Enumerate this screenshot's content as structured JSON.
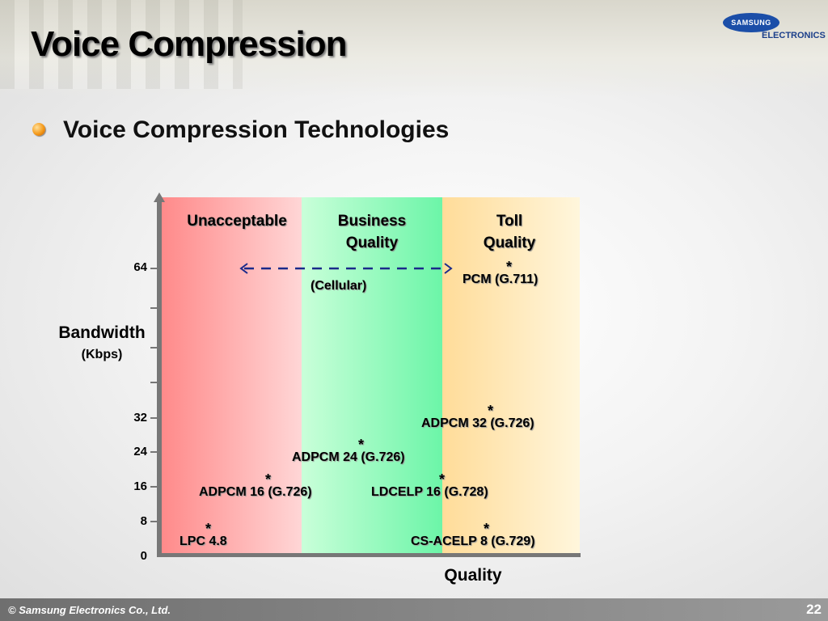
{
  "slide": {
    "title": "Voice Compression",
    "subtitle": "Voice Compression Technologies",
    "logo_text": "SAMSUNG",
    "logo_subtext": "ELECTRONICS",
    "footer": "© Samsung Electronics Co., Ltd.",
    "page_number": "22"
  },
  "diagram": {
    "y_axis_label": "Bandwidth",
    "y_axis_unit": "(Kbps)",
    "x_axis_label": "Quality",
    "y_ticks": [
      "64",
      "32",
      "24",
      "16",
      "8",
      "0"
    ],
    "bands": [
      {
        "label": "Unacceptable",
        "color": "#ff8a8a"
      },
      {
        "label": "Business Quality",
        "color": "#6cf5a8"
      },
      {
        "label": "Toll Quality",
        "color": "#ffdc99"
      }
    ],
    "cellular_label": "(Cellular)",
    "star": "*",
    "codecs": [
      {
        "label": "PCM (G.711)",
        "bandwidth": 64
      },
      {
        "label": "ADPCM 32 (G.726)",
        "bandwidth": 32
      },
      {
        "label": "ADPCM 24 (G.726)",
        "bandwidth": 24
      },
      {
        "label": "ADPCM 16 (G.726)",
        "bandwidth": 16
      },
      {
        "label": "LDCELP 16 (G.728)",
        "bandwidth": 16
      },
      {
        "label": "LPC 4.8",
        "bandwidth": 4.8
      },
      {
        "label": "CS-ACELP 8 (G.729)",
        "bandwidth": 8
      }
    ]
  }
}
